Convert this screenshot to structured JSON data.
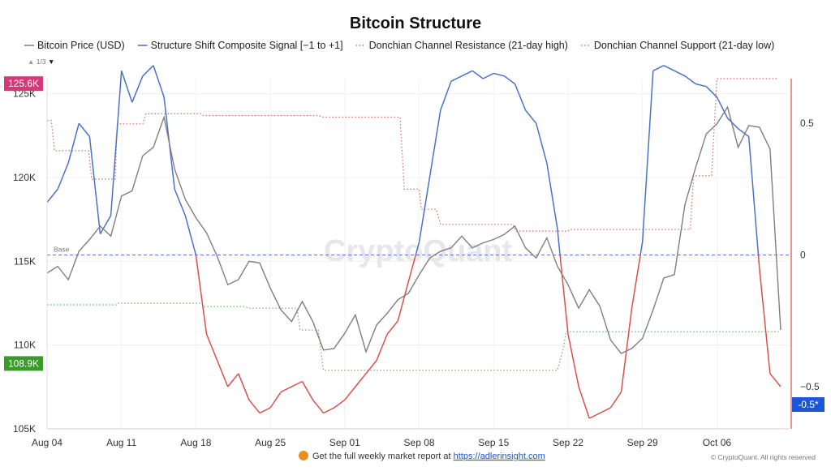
{
  "chart_data": {
    "type": "line",
    "title": "Bitcoin Structure",
    "legend": [
      {
        "key": "price",
        "label": "Bitcoin Price (USD)",
        "color": "#7f7f7f",
        "style": "solid"
      },
      {
        "key": "signal",
        "label": "Structure Shift Composite Signal [−1 to +1]",
        "color": "#4a72c9",
        "style": "solid"
      },
      {
        "key": "resistance",
        "label": "Donchian Channel Resistance (21-day high)",
        "color": "#d46a6a",
        "style": "dotted"
      },
      {
        "key": "support",
        "label": "Donchian Channel Support (21-day low)",
        "color": "#6bb16b",
        "style": "dotted"
      }
    ],
    "legend_pager": "1/3",
    "x_range": [
      0,
      69
    ],
    "x_ticks": [
      {
        "x": 0,
        "label": "Aug 04"
      },
      {
        "x": 7,
        "label": "Aug 11"
      },
      {
        "x": 14,
        "label": "Aug 18"
      },
      {
        "x": 21,
        "label": "Aug 25"
      },
      {
        "x": 28,
        "label": "Sep 01"
      },
      {
        "x": 35,
        "label": "Sep 08"
      },
      {
        "x": 42,
        "label": "Sep 15"
      },
      {
        "x": 49,
        "label": "Sep 22"
      },
      {
        "x": 56,
        "label": "Sep 29"
      },
      {
        "x": 63,
        "label": "Oct 06"
      }
    ],
    "y_left": {
      "range": [
        105000,
        125900
      ],
      "ticks": [
        {
          "v": 105000,
          "label": "105K"
        },
        {
          "v": 110000,
          "label": "110K"
        },
        {
          "v": 115000,
          "label": "115K"
        },
        {
          "v": 120000,
          "label": "120K"
        },
        {
          "v": 125000,
          "label": "125K"
        }
      ]
    },
    "y_right": {
      "range": [
        -0.66,
        0.67
      ],
      "ticks": [
        {
          "v": 0.5,
          "label": "0.5"
        },
        {
          "v": 0,
          "label": "0"
        },
        {
          "v": -0.5,
          "label": "−0.5"
        }
      ]
    },
    "base_line": {
      "value": 0,
      "label": "Base",
      "color": "#4a72c9"
    },
    "badges": {
      "price_high": {
        "value": 125600,
        "label": "125.6K",
        "color": "#d43a7a"
      },
      "price_low": {
        "value": 108900,
        "label": "108.9K",
        "color": "#3a9a2a"
      },
      "signal_last": {
        "value": -0.5,
        "label": "-0.5*",
        "color": "#1a56d8"
      }
    },
    "series": {
      "price": [
        [
          0,
          114300
        ],
        [
          1,
          114700
        ],
        [
          2,
          113900
        ],
        [
          3,
          115600
        ],
        [
          4,
          116300
        ],
        [
          5,
          117100
        ],
        [
          6,
          116500
        ],
        [
          7,
          118900
        ],
        [
          8,
          119200
        ],
        [
          9,
          121300
        ],
        [
          10,
          121800
        ],
        [
          11,
          123600
        ],
        [
          12,
          120500
        ],
        [
          13,
          118700
        ],
        [
          14,
          117600
        ],
        [
          15,
          116700
        ],
        [
          16,
          115300
        ],
        [
          17,
          113600
        ],
        [
          18,
          113900
        ],
        [
          19,
          115000
        ],
        [
          20,
          114900
        ],
        [
          21,
          113400
        ],
        [
          22,
          112100
        ],
        [
          23,
          111400
        ],
        [
          24,
          112600
        ],
        [
          25,
          111400
        ],
        [
          26,
          109700
        ],
        [
          27,
          109800
        ],
        [
          28,
          110700
        ],
        [
          29,
          111800
        ],
        [
          30,
          109600
        ],
        [
          31,
          111200
        ],
        [
          32,
          111900
        ],
        [
          33,
          112700
        ],
        [
          34,
          113100
        ],
        [
          35,
          114200
        ],
        [
          36,
          115200
        ],
        [
          37,
          115600
        ],
        [
          38,
          115800
        ],
        [
          39,
          116500
        ],
        [
          40,
          115800
        ],
        [
          41,
          116100
        ],
        [
          42,
          116300
        ],
        [
          43,
          116600
        ],
        [
          44,
          117100
        ],
        [
          45,
          115800
        ],
        [
          46,
          115200
        ],
        [
          47,
          116400
        ],
        [
          48,
          114700
        ],
        [
          49,
          113600
        ],
        [
          50,
          112200
        ],
        [
          51,
          113300
        ],
        [
          52,
          112300
        ],
        [
          53,
          110300
        ],
        [
          54,
          109500
        ],
        [
          55,
          109800
        ],
        [
          56,
          110400
        ],
        [
          57,
          112100
        ],
        [
          58,
          114000
        ],
        [
          59,
          114200
        ],
        [
          60,
          118400
        ],
        [
          61,
          120600
        ],
        [
          62,
          122600
        ],
        [
          63,
          123200
        ],
        [
          64,
          124200
        ],
        [
          65,
          121800
        ],
        [
          66,
          123100
        ],
        [
          67,
          123000
        ],
        [
          68,
          121700
        ],
        [
          69,
          110900
        ]
      ],
      "signal": [
        [
          0,
          0.2
        ],
        [
          1,
          0.25
        ],
        [
          2,
          0.35
        ],
        [
          3,
          0.5
        ],
        [
          4,
          0.45
        ],
        [
          5,
          0.08
        ],
        [
          6,
          0.15
        ],
        [
          7,
          0.7
        ],
        [
          8,
          0.58
        ],
        [
          9,
          0.68
        ],
        [
          10,
          0.72
        ],
        [
          11,
          0.6
        ],
        [
          12,
          0.25
        ],
        [
          13,
          0.15
        ],
        [
          14,
          0.0
        ],
        [
          15,
          -0.3
        ],
        [
          16,
          -0.4
        ],
        [
          17,
          -0.5
        ],
        [
          18,
          -0.45
        ],
        [
          19,
          -0.55
        ],
        [
          20,
          -0.6
        ],
        [
          21,
          -0.58
        ],
        [
          22,
          -0.52
        ],
        [
          23,
          -0.5
        ],
        [
          24,
          -0.48
        ],
        [
          25,
          -0.55
        ],
        [
          26,
          -0.6
        ],
        [
          27,
          -0.58
        ],
        [
          28,
          -0.55
        ],
        [
          29,
          -0.5
        ],
        [
          30,
          -0.45
        ],
        [
          31,
          -0.4
        ],
        [
          32,
          -0.3
        ],
        [
          33,
          -0.25
        ],
        [
          34,
          -0.1
        ],
        [
          35,
          0.05
        ],
        [
          36,
          0.3
        ],
        [
          37,
          0.55
        ],
        [
          38,
          0.66
        ],
        [
          39,
          0.68
        ],
        [
          40,
          0.7
        ],
        [
          41,
          0.67
        ],
        [
          42,
          0.69
        ],
        [
          43,
          0.68
        ],
        [
          44,
          0.65
        ],
        [
          45,
          0.55
        ],
        [
          46,
          0.5
        ],
        [
          47,
          0.35
        ],
        [
          48,
          0.1
        ],
        [
          49,
          -0.3
        ],
        [
          50,
          -0.5
        ],
        [
          51,
          -0.62
        ],
        [
          52,
          -0.6
        ],
        [
          53,
          -0.58
        ],
        [
          54,
          -0.52
        ],
        [
          55,
          -0.2
        ],
        [
          56,
          0.05
        ],
        [
          57,
          0.7
        ],
        [
          58,
          0.72
        ],
        [
          59,
          0.7
        ],
        [
          60,
          0.68
        ],
        [
          61,
          0.65
        ],
        [
          62,
          0.64
        ],
        [
          63,
          0.6
        ],
        [
          64,
          0.52
        ],
        [
          65,
          0.48
        ],
        [
          66,
          0.45
        ],
        [
          67,
          -0.05
        ],
        [
          68,
          -0.45
        ],
        [
          69,
          -0.5
        ]
      ],
      "resistance": [
        [
          0,
          123400
        ],
        [
          0.4,
          123400
        ],
        [
          0.7,
          121600
        ],
        [
          3.9,
          121600
        ],
        [
          4.2,
          119900
        ],
        [
          6.4,
          119900
        ],
        [
          6.6,
          123200
        ],
        [
          9,
          123200
        ],
        [
          9.3,
          123800
        ],
        [
          14.5,
          123800
        ],
        [
          14.7,
          123700
        ],
        [
          25.5,
          123700
        ],
        [
          26,
          123600
        ],
        [
          33.2,
          123600
        ],
        [
          33.6,
          119300
        ],
        [
          35,
          119300
        ],
        [
          35.2,
          118100
        ],
        [
          36.6,
          118100
        ],
        [
          37,
          117200
        ],
        [
          43.8,
          117200
        ],
        [
          44.1,
          116800
        ],
        [
          49,
          116800
        ],
        [
          49.2,
          116900
        ],
        [
          60.5,
          116900
        ],
        [
          60.8,
          120100
        ],
        [
          62.5,
          120100
        ],
        [
          63,
          125900
        ],
        [
          68.8,
          125900
        ]
      ],
      "support": [
        [
          0,
          112400
        ],
        [
          6.5,
          112400
        ],
        [
          6.7,
          112500
        ],
        [
          14.5,
          112500
        ],
        [
          14.8,
          112300
        ],
        [
          18.5,
          112300
        ],
        [
          19,
          112200
        ],
        [
          23.5,
          112200
        ],
        [
          23.8,
          110900
        ],
        [
          25.5,
          110900
        ],
        [
          26,
          108500
        ],
        [
          48,
          108500
        ],
        [
          48.3,
          109200
        ],
        [
          48.6,
          109900
        ],
        [
          48.8,
          110800
        ],
        [
          68.8,
          110800
        ]
      ]
    },
    "watermark": "CryptoQuant",
    "footer": "Get the full weekly market report at",
    "footer_link": "https://adlerinsight.com",
    "copyright": "© CryptoQuant. All rights reserved"
  }
}
